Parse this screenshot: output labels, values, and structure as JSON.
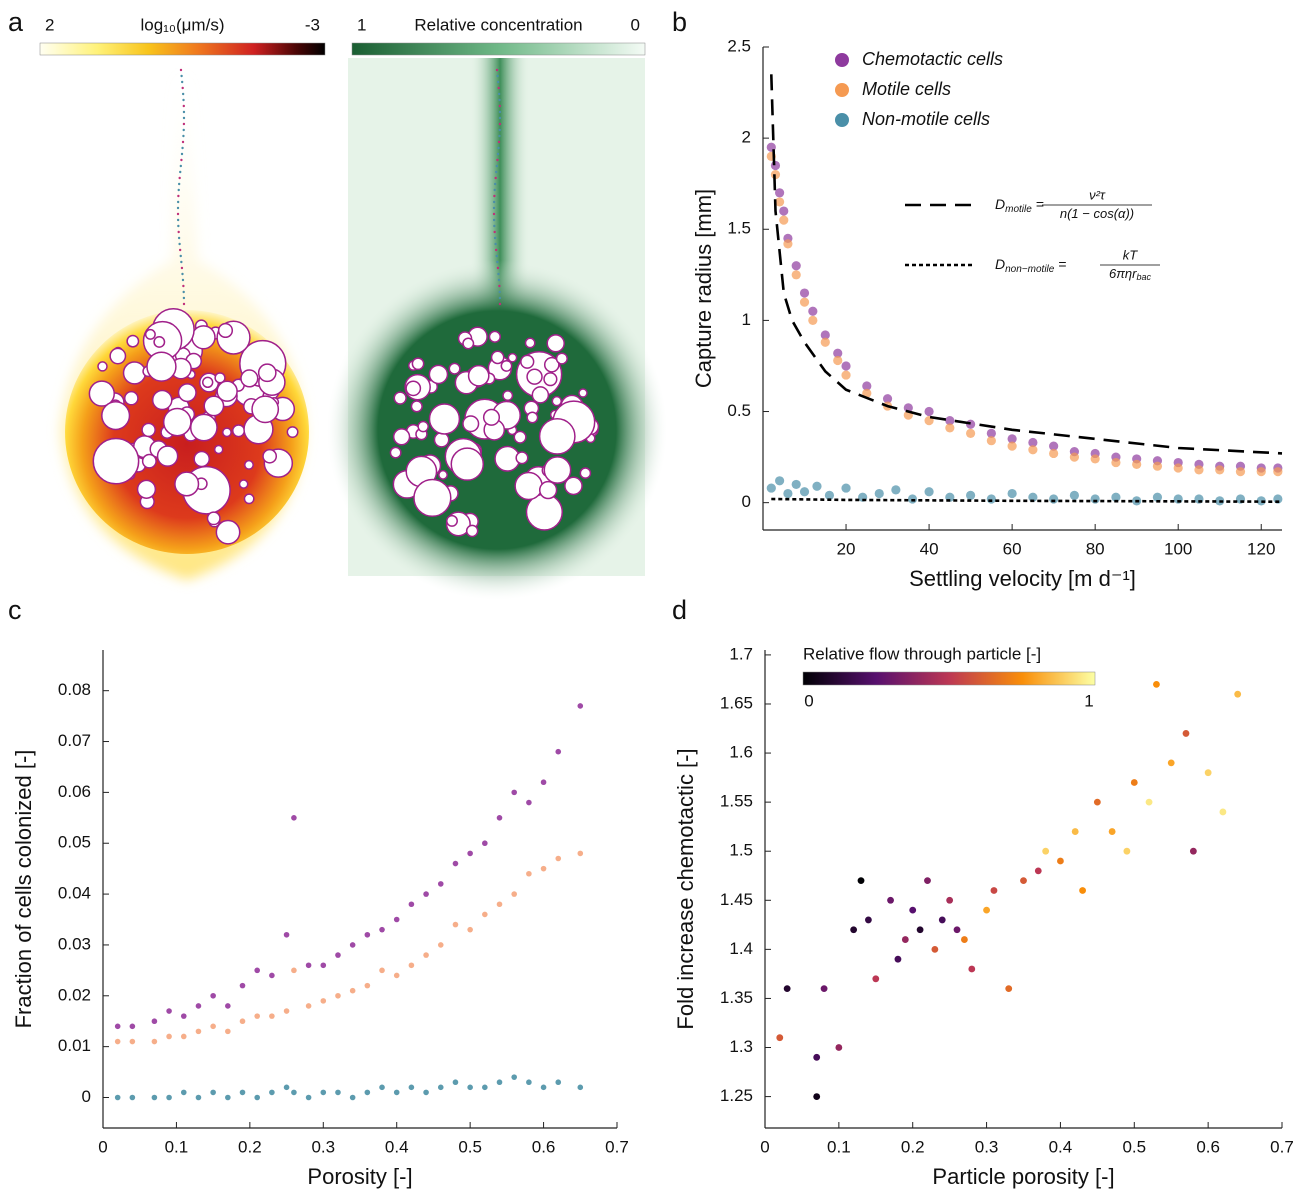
{
  "panel_a": {
    "letter": "a",
    "colorbars": [
      {
        "label": "log₁₀(μm/s)",
        "ticks": [
          2,
          -3
        ]
      },
      {
        "label": "Relative concentration",
        "ticks": [
          1,
          0
        ]
      }
    ]
  },
  "chart_data": [
    {
      "panel": "b",
      "type": "scatter",
      "y_label": "Capture radius [mm]",
      "x_label": "Settling velocity [m d⁻¹]",
      "xlim": [
        0,
        125
      ],
      "ylim": [
        -0.15,
        2.5
      ],
      "xticks": [
        20,
        40,
        60,
        80,
        100,
        120
      ],
      "yticks": [
        0,
        0.5,
        1,
        1.5,
        2,
        2.5
      ],
      "legend": "top-left",
      "series": [
        {
          "name": "Chemotactic cells",
          "color": "#8e3a9e",
          "x": [
            2,
            3,
            4,
            5,
            6,
            8,
            10,
            12,
            15,
            18,
            20,
            25,
            30,
            35,
            40,
            45,
            50,
            55,
            60,
            65,
            70,
            75,
            80,
            85,
            90,
            95,
            100,
            105,
            110,
            115,
            120,
            124
          ],
          "values": [
            1.95,
            1.85,
            1.7,
            1.6,
            1.45,
            1.3,
            1.15,
            1.05,
            0.92,
            0.82,
            0.75,
            0.64,
            0.57,
            0.52,
            0.5,
            0.45,
            0.43,
            0.38,
            0.35,
            0.33,
            0.31,
            0.28,
            0.27,
            0.25,
            0.24,
            0.23,
            0.22,
            0.21,
            0.2,
            0.2,
            0.19,
            0.19
          ]
        },
        {
          "name": "Motile cells",
          "color": "#f59a52",
          "x": [
            2,
            3,
            4,
            5,
            6,
            8,
            10,
            12,
            15,
            18,
            20,
            25,
            30,
            35,
            40,
            45,
            50,
            55,
            60,
            65,
            70,
            75,
            80,
            85,
            90,
            95,
            100,
            105,
            110,
            115,
            120,
            124
          ],
          "values": [
            1.9,
            1.8,
            1.65,
            1.55,
            1.42,
            1.25,
            1.1,
            1.0,
            0.88,
            0.78,
            0.7,
            0.6,
            0.53,
            0.48,
            0.45,
            0.41,
            0.38,
            0.34,
            0.31,
            0.29,
            0.27,
            0.25,
            0.24,
            0.22,
            0.21,
            0.2,
            0.19,
            0.18,
            0.18,
            0.17,
            0.17,
            0.17
          ]
        },
        {
          "name": "Non-motile cells",
          "color": "#4a8fa8",
          "x": [
            2,
            4,
            6,
            8,
            10,
            13,
            16,
            20,
            24,
            28,
            32,
            36,
            40,
            45,
            50,
            55,
            60,
            65,
            70,
            75,
            80,
            85,
            90,
            95,
            100,
            105,
            110,
            115,
            120,
            124
          ],
          "values": [
            0.08,
            0.12,
            0.05,
            0.1,
            0.06,
            0.09,
            0.04,
            0.08,
            0.03,
            0.05,
            0.07,
            0.02,
            0.06,
            0.03,
            0.04,
            0.02,
            0.05,
            0.03,
            0.02,
            0.04,
            0.02,
            0.03,
            0.01,
            0.03,
            0.02,
            0.02,
            0.01,
            0.02,
            0.01,
            0.02
          ]
        }
      ],
      "lines": [
        {
          "style": "dashed",
          "color": "#000000",
          "x": [
            2,
            3,
            5,
            7,
            10,
            15,
            20,
            30,
            40,
            60,
            80,
            100,
            125
          ],
          "values": [
            2.35,
            1.6,
            1.15,
            1.0,
            0.88,
            0.72,
            0.62,
            0.53,
            0.47,
            0.4,
            0.35,
            0.3,
            0.27
          ],
          "formula": {
            "symbol": "D",
            "subscript": "motile",
            "relation": "=",
            "numerator": "ν²τ",
            "denominator": "n(1 − cos(α))",
            "denominator_subscript": ""
          }
        },
        {
          "style": "dotted",
          "color": "#000000",
          "x": [
            2,
            20,
            60,
            125
          ],
          "values": [
            0.02,
            0.015,
            0.01,
            0.005
          ],
          "formula": {
            "symbol": "D",
            "subscript": "non−motile",
            "relation": "=",
            "numerator": "kT",
            "denominator": "6πηr",
            "denominator_subscript": "bac"
          }
        }
      ]
    },
    {
      "panel": "c",
      "type": "scatter",
      "y_label": "Fraction of cells colonized [-]",
      "x_label": "Porosity [-]",
      "xlim": [
        0,
        0.7
      ],
      "ylim": [
        -0.006,
        0.088
      ],
      "xticks": [
        0,
        0.1,
        0.2,
        0.3,
        0.4,
        0.5,
        0.6,
        0.7
      ],
      "yticks": [
        0,
        0.01,
        0.02,
        0.03,
        0.04,
        0.05,
        0.06,
        0.07,
        0.08
      ],
      "series": [
        {
          "color": "#8e2a96",
          "x": [
            0.02,
            0.04,
            0.07,
            0.09,
            0.11,
            0.13,
            0.15,
            0.17,
            0.19,
            0.21,
            0.23,
            0.25,
            0.26,
            0.28,
            0.3,
            0.32,
            0.34,
            0.36,
            0.38,
            0.4,
            0.42,
            0.44,
            0.46,
            0.48,
            0.5,
            0.52,
            0.54,
            0.56,
            0.58,
            0.6,
            0.62,
            0.65
          ],
          "values": [
            0.014,
            0.014,
            0.015,
            0.017,
            0.016,
            0.018,
            0.02,
            0.018,
            0.022,
            0.025,
            0.024,
            0.032,
            0.055,
            0.026,
            0.026,
            0.028,
            0.03,
            0.032,
            0.033,
            0.035,
            0.038,
            0.04,
            0.042,
            0.046,
            0.048,
            0.05,
            0.055,
            0.06,
            0.058,
            0.062,
            0.068,
            0.077
          ]
        },
        {
          "color": "#f4a076",
          "x": [
            0.02,
            0.04,
            0.07,
            0.09,
            0.11,
            0.13,
            0.15,
            0.17,
            0.19,
            0.21,
            0.23,
            0.25,
            0.26,
            0.28,
            0.3,
            0.32,
            0.34,
            0.36,
            0.38,
            0.4,
            0.42,
            0.44,
            0.46,
            0.48,
            0.5,
            0.52,
            0.54,
            0.56,
            0.58,
            0.6,
            0.62,
            0.65
          ],
          "values": [
            0.011,
            0.011,
            0.011,
            0.012,
            0.012,
            0.013,
            0.014,
            0.013,
            0.015,
            0.016,
            0.016,
            0.017,
            0.025,
            0.018,
            0.019,
            0.02,
            0.021,
            0.022,
            0.025,
            0.024,
            0.026,
            0.028,
            0.03,
            0.034,
            0.033,
            0.036,
            0.038,
            0.04,
            0.044,
            0.045,
            0.047,
            0.048
          ]
        },
        {
          "color": "#3f8aa0",
          "x": [
            0.02,
            0.04,
            0.07,
            0.09,
            0.11,
            0.13,
            0.15,
            0.17,
            0.19,
            0.21,
            0.23,
            0.25,
            0.26,
            0.28,
            0.3,
            0.32,
            0.34,
            0.36,
            0.38,
            0.4,
            0.42,
            0.44,
            0.46,
            0.48,
            0.5,
            0.52,
            0.54,
            0.56,
            0.58,
            0.6,
            0.62,
            0.65
          ],
          "values": [
            0,
            0,
            0,
            0,
            0.001,
            0,
            0.001,
            0,
            0.001,
            0,
            0.001,
            0.002,
            0.001,
            0,
            0.001,
            0.001,
            0,
            0.001,
            0.002,
            0.001,
            0.002,
            0.001,
            0.002,
            0.003,
            0.002,
            0.002,
            0.003,
            0.004,
            0.003,
            0.002,
            0.003,
            0.002
          ]
        }
      ]
    },
    {
      "panel": "d",
      "type": "scatter",
      "y_label": "Fold increase chemotactic [-]",
      "x_label": "Particle porosity [-]",
      "xlim": [
        0,
        0.7
      ],
      "ylim": [
        1.218,
        1.705
      ],
      "xticks": [
        0,
        0.1,
        0.2,
        0.3,
        0.4,
        0.5,
        0.6,
        0.7
      ],
      "yticks": [
        1.25,
        1.3,
        1.35,
        1.4,
        1.45,
        1.5,
        1.55,
        1.6,
        1.65,
        1.7
      ],
      "colorbar": {
        "label": "Relative flow through particle [-]",
        "ticks": [
          0,
          1
        ],
        "colormap": "inferno"
      },
      "series": [
        {
          "x": [
            0.02,
            0.03,
            0.07,
            0.07,
            0.08,
            0.1,
            0.12,
            0.13,
            0.14,
            0.15,
            0.17,
            0.18,
            0.19,
            0.2,
            0.21,
            0.22,
            0.23,
            0.24,
            0.25,
            0.26,
            0.27,
            0.28,
            0.3,
            0.31,
            0.33,
            0.35,
            0.37,
            0.38,
            0.4,
            0.42,
            0.43,
            0.45,
            0.47,
            0.49,
            0.5,
            0.52,
            0.53,
            0.55,
            0.57,
            0.58,
            0.6,
            0.62,
            0.64
          ],
          "values": [
            1.31,
            1.36,
            1.25,
            1.29,
            1.36,
            1.3,
            1.42,
            1.47,
            1.43,
            1.37,
            1.45,
            1.39,
            1.41,
            1.44,
            1.42,
            1.47,
            1.4,
            1.43,
            1.45,
            1.42,
            1.41,
            1.38,
            1.44,
            1.46,
            1.36,
            1.47,
            1.48,
            1.5,
            1.49,
            1.52,
            1.46,
            1.55,
            1.52,
            1.5,
            1.57,
            1.55,
            1.67,
            1.59,
            1.62,
            1.5,
            1.58,
            1.54,
            1.66
          ],
          "color_values": [
            0.6,
            0.1,
            0.05,
            0.2,
            0.3,
            0.4,
            0.1,
            0.0,
            0.15,
            0.5,
            0.3,
            0.2,
            0.4,
            0.25,
            0.1,
            0.35,
            0.6,
            0.2,
            0.45,
            0.3,
            0.7,
            0.5,
            0.8,
            0.55,
            0.65,
            0.6,
            0.5,
            0.9,
            0.7,
            0.85,
            0.75,
            0.65,
            0.8,
            0.9,
            0.7,
            0.95,
            0.75,
            0.8,
            0.6,
            0.4,
            0.9,
            0.95,
            0.85
          ]
        }
      ]
    }
  ]
}
